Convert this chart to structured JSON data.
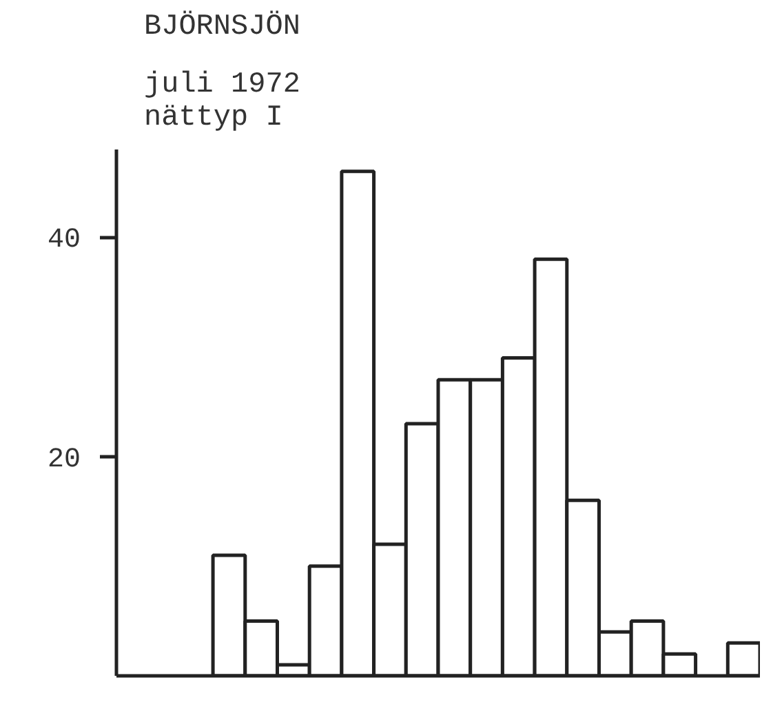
{
  "chart_data": {
    "type": "bar",
    "title": "BJÖRNSJÖN",
    "subtitle": "juli 1972\nnättyp I",
    "categories": [
      null,
      null,
      null,
      null,
      null,
      null,
      null,
      null,
      null,
      null,
      null,
      null,
      null,
      null,
      null,
      null,
      null,
      null,
      null,
      null
    ],
    "values": [
      0,
      0,
      0,
      11,
      5,
      1,
      10,
      46,
      12,
      23,
      27,
      27,
      29,
      38,
      16,
      4,
      5,
      2,
      0,
      3
    ],
    "color": "#ffffff",
    "ylim": [
      0,
      48
    ],
    "yticks": [
      20,
      40
    ],
    "tick_labels": "y",
    "grid": false
  }
}
